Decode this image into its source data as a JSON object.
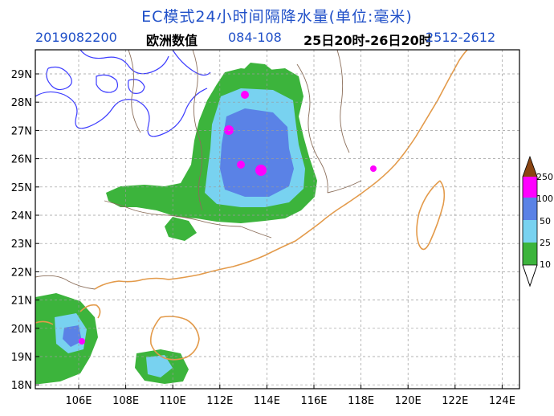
{
  "title": "EC模式24小时间隔降水量(单位:毫米)",
  "subtitle": {
    "init_time": "2019082200",
    "model": "欧洲数值",
    "forecast_hours": "084-108",
    "valid_period": "25日20时-26日20时",
    "date_code": "2512-2612"
  },
  "axes": {
    "lat_labels": [
      "29N",
      "28N",
      "27N",
      "26N",
      "25N",
      "24N",
      "23N",
      "22N",
      "21N",
      "20N",
      "19N",
      "18N"
    ],
    "lon_labels": [
      "106E",
      "108E",
      "110E",
      "112E",
      "114E",
      "116E",
      "118E",
      "120E",
      "122E",
      "124E"
    ]
  },
  "legend": {
    "labels": [
      "250",
      "100",
      "50",
      "25",
      "10"
    ],
    "colors": [
      "#8b4513",
      "#ff00ff",
      "#5a82e6",
      "#78d2f0",
      "#3cb43c"
    ]
  },
  "colors": {
    "coast": "#e39a4a",
    "province_border": "#8b6e5a",
    "contour": "#3c3cff",
    "grid": "#9a9a9a"
  }
}
